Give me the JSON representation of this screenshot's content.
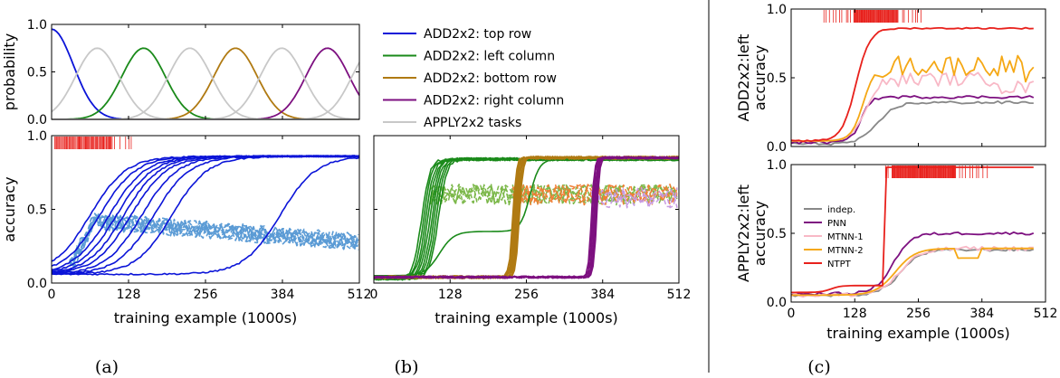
{
  "captions": {
    "a": "(a)",
    "b": "(b)",
    "c": "(c)"
  },
  "colors": {
    "blue": "#0b14d8",
    "lightblue": "#5b9bd5",
    "green": "#1a8a1a",
    "lightgreen": "#7cb84a",
    "brown": "#b07a12",
    "orange": "#f07f36",
    "purple": "#7d1080",
    "lightpurple": "#c79be3",
    "gray": "#c8c8c8",
    "darkgray": "#888888",
    "pink": "#f8b8c6",
    "yellow": "#f5a815",
    "red": "#e8211c"
  },
  "chart_data": [
    {
      "id": "top-probability",
      "type": "line",
      "ylabel": "probability",
      "xlim": [
        0,
        512
      ],
      "ylim": [
        0,
        1.0
      ],
      "yticks": [
        "0.0",
        "0.5",
        "1.0"
      ],
      "legend": {
        "position": "right",
        "entries": [
          {
            "label": "ADD2x2: top row",
            "color": "#0b14d8"
          },
          {
            "label": "ADD2x2: left column",
            "color": "#1a8a1a"
          },
          {
            "label": "ADD2x2: bottom row",
            "color": "#b07a12"
          },
          {
            "label": "ADD2x2: right column",
            "color": "#7d1080"
          },
          {
            "label": "APPLY2x2 tasks",
            "color": "#c8c8c8"
          }
        ]
      },
      "series": [
        {
          "name": "ADD2x2: top row",
          "center": 0,
          "peak": 0.95
        },
        {
          "name": "ADD2x2: left column",
          "center": 153,
          "peak": 0.75
        },
        {
          "name": "ADD2x2: bottom row",
          "center": 306,
          "peak": 0.75
        },
        {
          "name": "ADD2x2: right column",
          "center": 459,
          "peak": 0.75
        },
        {
          "name": "APPLY2x2 tasks",
          "centers": [
            76,
            230,
            383,
            536
          ],
          "peak": 0.75
        }
      ]
    },
    {
      "id": "panel-a",
      "type": "line",
      "xlabel": "training example (1000s)",
      "ylabel": "accuracy",
      "xlim": [
        0,
        512
      ],
      "ylim": [
        0,
        1.0
      ],
      "xticks": [
        "0",
        "128",
        "256",
        "384",
        "512"
      ],
      "yticks": [
        "0.0",
        "0.5",
        "1.0"
      ],
      "series": [
        {
          "name": "ADD2x2: top row",
          "runs": 10,
          "final": 0.86,
          "rise_k_range": [
            64,
            380
          ]
        },
        {
          "name": "APPLY2x2 tasks",
          "runs": 10,
          "level": [
            0.42,
            0.28
          ]
        }
      ],
      "events": {
        "from": 5,
        "to": 133,
        "dense_until": 100
      }
    },
    {
      "id": "panel-b",
      "type": "line",
      "xlabel": "training example (1000s)",
      "xlim": [
        0,
        512
      ],
      "ylim": [
        0,
        1.0
      ],
      "xticks": [
        "0",
        "128",
        "256",
        "384",
        "512"
      ],
      "series": [
        {
          "name": "ADD2x2: left column",
          "rise": [
            80,
            112
          ],
          "final": 0.84
        },
        {
          "name": "ADD2x2: bottom row",
          "rise": [
            233,
            246
          ],
          "final": 0.85
        },
        {
          "name": "ADD2x2: right column",
          "rise": [
            365,
            374
          ],
          "final": 0.85
        },
        {
          "name": "APPLY2x2 tasks",
          "segments": [
            [
              95,
              512,
              0.6
            ]
          ]
        }
      ]
    },
    {
      "id": "panel-c-top",
      "type": "line",
      "ylabel": "ADD2x2:left\naccuracy",
      "xlim": [
        0,
        512
      ],
      "ylim": [
        0,
        1.0
      ],
      "yticks": [
        "0.0",
        "0.5",
        "1.0"
      ],
      "series": [
        {
          "name": "indep.",
          "final": 0.32
        },
        {
          "name": "PNN",
          "final": 0.36
        },
        {
          "name": "MTNN-1",
          "final": 0.41
        },
        {
          "name": "MTNN-2",
          "final": 0.47
        },
        {
          "name": "NTPT",
          "final": 0.86
        }
      ],
      "events": {
        "from": 66,
        "to": 262,
        "dense_from": 120,
        "dense_until": 215
      }
    },
    {
      "id": "panel-c-bottom",
      "type": "line",
      "xlabel": "training example (1000s)",
      "ylabel": "APPLY2x2:left\naccuracy",
      "xlim": [
        0,
        512
      ],
      "ylim": [
        0,
        1.0
      ],
      "xticks": [
        "0",
        "128",
        "256",
        "384",
        "512"
      ],
      "yticks": [
        "0.0",
        "0.5",
        "1.0"
      ],
      "legend": {
        "position": "left",
        "entries": [
          {
            "label": "indep.",
            "color": "#888888"
          },
          {
            "label": "PNN",
            "color": "#7d1080"
          },
          {
            "label": "MTNN-1",
            "color": "#f8b8c6"
          },
          {
            "label": "MTNN-2",
            "color": "#f5a815"
          },
          {
            "label": "NTPT",
            "color": "#e8211c"
          }
        ]
      },
      "series": [
        {
          "name": "indep.",
          "final": 0.38
        },
        {
          "name": "PNN",
          "final": 0.5
        },
        {
          "name": "MTNN-1",
          "final": 0.39
        },
        {
          "name": "MTNN-2",
          "final": 0.39
        },
        {
          "name": "NTPT",
          "final": 0.98
        }
      ],
      "events": {
        "from": 190,
        "to": 397,
        "dense_from": 200,
        "dense_until": 330
      }
    }
  ]
}
